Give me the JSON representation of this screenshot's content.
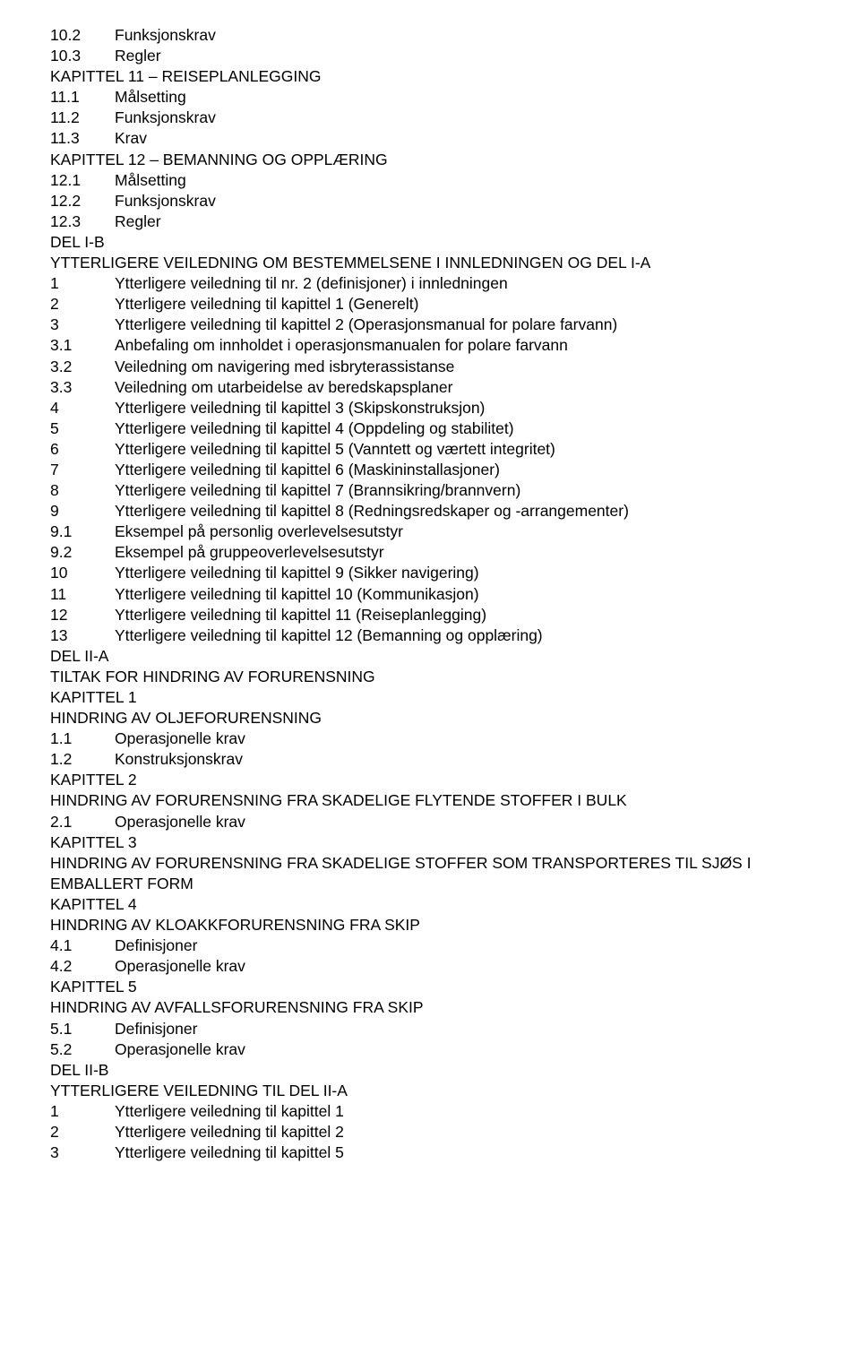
{
  "items": [
    {
      "type": "row",
      "num": "10.2",
      "text": "Funksjonskrav"
    },
    {
      "type": "row",
      "num": "10.3",
      "text": "Regler"
    },
    {
      "type": "section",
      "text": "KAPITTEL 11 – REISEPLANLEGGING"
    },
    {
      "type": "row",
      "num": "11.1",
      "text": "Målsetting"
    },
    {
      "type": "row",
      "num": "11.2",
      "text": "Funksjonskrav"
    },
    {
      "type": "row",
      "num": "11.3",
      "text": "Krav"
    },
    {
      "type": "section",
      "text": "KAPITTEL 12 – BEMANNING OG OPPLÆRING"
    },
    {
      "type": "row",
      "num": "12.1",
      "text": "Målsetting"
    },
    {
      "type": "row",
      "num": "12.2",
      "text": "Funksjonskrav"
    },
    {
      "type": "row",
      "num": "12.3",
      "text": "Regler"
    },
    {
      "type": "section",
      "text": "DEL I-B"
    },
    {
      "type": "section",
      "text": "YTTERLIGERE VEILEDNING OM BESTEMMELSENE I INNLEDNINGEN OG DEL I-A"
    },
    {
      "type": "row",
      "num": "1",
      "text": "Ytterligere veiledning til nr. 2 (definisjoner) i innledningen"
    },
    {
      "type": "row",
      "num": "2",
      "text": "Ytterligere veiledning til kapittel 1 (Generelt)"
    },
    {
      "type": "row",
      "num": "3",
      "text": "Ytterligere veiledning til kapittel 2 (Operasjonsmanual for polare farvann)"
    },
    {
      "type": "row",
      "num": "3.1",
      "text": "Anbefaling om innholdet i operasjonsmanualen for polare farvann"
    },
    {
      "type": "row",
      "num": "3.2",
      "text": "Veiledning om navigering med isbryterassistanse"
    },
    {
      "type": "row",
      "num": "3.3",
      "text": "Veiledning om utarbeidelse av beredskapsplaner"
    },
    {
      "type": "row",
      "num": "4",
      "text": "Ytterligere veiledning til kapittel 3 (Skipskonstruksjon)"
    },
    {
      "type": "row",
      "num": "5",
      "text": "Ytterligere veiledning til kapittel 4 (Oppdeling og stabilitet)"
    },
    {
      "type": "row",
      "num": "6",
      "text": "Ytterligere veiledning til kapittel 5 (Vanntett og værtett integritet)"
    },
    {
      "type": "row",
      "num": "7",
      "text": "Ytterligere veiledning til kapittel 6 (Maskininstallasjoner)"
    },
    {
      "type": "row",
      "num": "8",
      "text": "Ytterligere veiledning til kapittel 7 (Brannsikring/brannvern)"
    },
    {
      "type": "row",
      "num": "9",
      "text": "Ytterligere veiledning til kapittel 8 (Redningsredskaper og -arrangementer)"
    },
    {
      "type": "row",
      "num": "9.1",
      "text": "Eksempel på personlig overlevelsesutstyr"
    },
    {
      "type": "row",
      "num": "9.2",
      "text": "Eksempel på gruppeoverlevelsesutstyr"
    },
    {
      "type": "row",
      "num": "10",
      "text": "Ytterligere veiledning til kapittel 9 (Sikker navigering)"
    },
    {
      "type": "row",
      "num": "11",
      "text": "Ytterligere veiledning til kapittel 10 (Kommunikasjon)"
    },
    {
      "type": "row",
      "num": "12",
      "text": "Ytterligere veiledning til kapittel 11 (Reiseplanlegging)"
    },
    {
      "type": "row",
      "num": "13",
      "text": "Ytterligere veiledning til kapittel 12 (Bemanning og opplæring)"
    },
    {
      "type": "section",
      "text": "DEL II-A"
    },
    {
      "type": "section",
      "text": "TILTAK FOR HINDRING AV FORURENSNING"
    },
    {
      "type": "section",
      "text": "KAPITTEL 1"
    },
    {
      "type": "section",
      "text": "HINDRING AV OLJEFORURENSNING"
    },
    {
      "type": "row",
      "num": "1.1",
      "text": "Operasjonelle krav"
    },
    {
      "type": "row",
      "num": "1.2",
      "text": "Konstruksjonskrav"
    },
    {
      "type": "section",
      "text": "KAPITTEL 2"
    },
    {
      "type": "section",
      "text": "HINDRING AV FORURENSNING FRA SKADELIGE FLYTENDE STOFFER I BULK"
    },
    {
      "type": "row",
      "num": "2.1",
      "text": "Operasjonelle krav"
    },
    {
      "type": "section",
      "text": "KAPITTEL 3"
    },
    {
      "type": "section",
      "text": "HINDRING AV FORURENSNING FRA SKADELIGE STOFFER SOM TRANSPORTERES TIL SJØS I EMBALLERT FORM"
    },
    {
      "type": "section",
      "text": "KAPITTEL 4"
    },
    {
      "type": "section",
      "text": "HINDRING AV KLOAKKFORURENSNING FRA SKIP"
    },
    {
      "type": "row",
      "num": "4.1",
      "text": "Definisjoner"
    },
    {
      "type": "row",
      "num": "4.2",
      "text": "Operasjonelle krav"
    },
    {
      "type": "section",
      "text": "KAPITTEL 5"
    },
    {
      "type": "section",
      "text": "HINDRING AV AVFALLSFORURENSNING FRA SKIP"
    },
    {
      "type": "row",
      "num": "5.1",
      "text": "Definisjoner"
    },
    {
      "type": "row",
      "num": "5.2",
      "text": "Operasjonelle krav"
    },
    {
      "type": "section",
      "text": "DEL II-B"
    },
    {
      "type": "section",
      "text": "YTTERLIGERE VEILEDNING TIL DEL II-A"
    },
    {
      "type": "row",
      "num": "1",
      "text": "Ytterligere veiledning til kapittel 1"
    },
    {
      "type": "row",
      "num": "2",
      "text": "Ytterligere veiledning til kapittel 2"
    },
    {
      "type": "row",
      "num": "3",
      "text": "Ytterligere veiledning til kapittel 5"
    }
  ]
}
